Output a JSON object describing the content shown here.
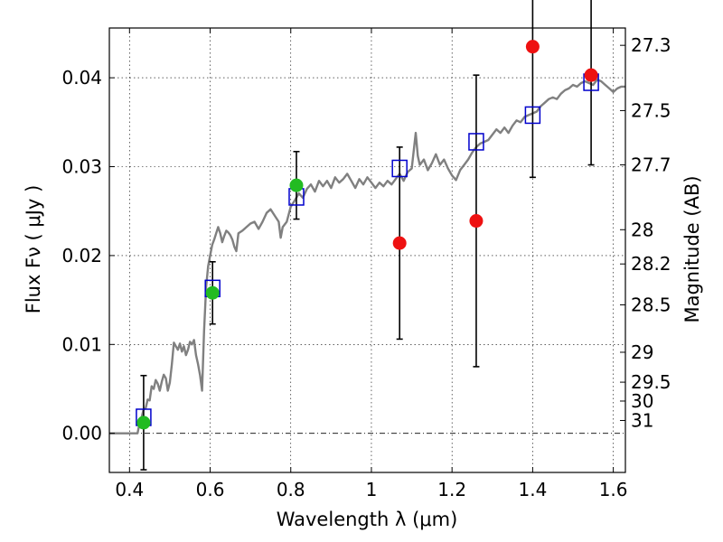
{
  "chart_data": {
    "type": "scatter",
    "xlabel": "Wavelength  λ (μm)",
    "ylabel_left": "Flux  Fν  ( μJy )",
    "ylabel_right": "Magnitude (AB)",
    "xlim": [
      0.35,
      1.63
    ],
    "ylim": [
      -0.0044,
      0.0456
    ],
    "grid": true,
    "x_ticks": [
      {
        "value": 0.4,
        "label": "0.4"
      },
      {
        "value": 0.6,
        "label": "0.6"
      },
      {
        "value": 0.8,
        "label": "0.8"
      },
      {
        "value": 1.0,
        "label": "1"
      },
      {
        "value": 1.2,
        "label": "1.2"
      },
      {
        "value": 1.4,
        "label": "1.4"
      },
      {
        "value": 1.6,
        "label": "1.6"
      }
    ],
    "y_ticks": [
      {
        "value": 0.0,
        "label": "0.00"
      },
      {
        "value": 0.01,
        "label": "0.01"
      },
      {
        "value": 0.02,
        "label": "0.02"
      },
      {
        "value": 0.03,
        "label": "0.03"
      },
      {
        "value": 0.04,
        "label": "0.04"
      }
    ],
    "right_ticks": [
      {
        "mag": 27.3,
        "label": "27.3"
      },
      {
        "mag": 27.5,
        "label": "27.5"
      },
      {
        "mag": 27.7,
        "label": "27.7"
      },
      {
        "mag": 28.0,
        "label": "28"
      },
      {
        "mag": 28.2,
        "label": "28.2"
      },
      {
        "mag": 28.5,
        "label": "28.5"
      },
      {
        "mag": 29.0,
        "label": "29"
      },
      {
        "mag": 29.5,
        "label": "29.5"
      },
      {
        "mag": 30.0,
        "label": "30"
      },
      {
        "mag": 31.0,
        "label": "31"
      }
    ],
    "series": [
      {
        "kind": "model-spectrum",
        "color": "#808080",
        "points": [
          [
            0.35,
            0.0
          ],
          [
            0.4,
            0.0
          ],
          [
            0.42,
            0.0
          ],
          [
            0.425,
            0.0012
          ],
          [
            0.43,
            0.0018
          ],
          [
            0.435,
            0.0027
          ],
          [
            0.44,
            0.0028
          ],
          [
            0.445,
            0.0038
          ],
          [
            0.45,
            0.0037
          ],
          [
            0.455,
            0.0053
          ],
          [
            0.46,
            0.005
          ],
          [
            0.465,
            0.006
          ],
          [
            0.47,
            0.0056
          ],
          [
            0.475,
            0.0048
          ],
          [
            0.48,
            0.0058
          ],
          [
            0.485,
            0.0066
          ],
          [
            0.49,
            0.0062
          ],
          [
            0.495,
            0.0048
          ],
          [
            0.5,
            0.0057
          ],
          [
            0.505,
            0.0077
          ],
          [
            0.51,
            0.0102
          ],
          [
            0.515,
            0.0098
          ],
          [
            0.52,
            0.0094
          ],
          [
            0.525,
            0.0101
          ],
          [
            0.53,
            0.0092
          ],
          [
            0.535,
            0.0098
          ],
          [
            0.54,
            0.0088
          ],
          [
            0.545,
            0.0094
          ],
          [
            0.55,
            0.0103
          ],
          [
            0.555,
            0.01
          ],
          [
            0.56,
            0.0105
          ],
          [
            0.565,
            0.0088
          ],
          [
            0.57,
            0.0078
          ],
          [
            0.575,
            0.0065
          ],
          [
            0.578,
            0.0055
          ],
          [
            0.58,
            0.0048
          ],
          [
            0.585,
            0.0115
          ],
          [
            0.59,
            0.0165
          ],
          [
            0.595,
            0.0188
          ],
          [
            0.6,
            0.02
          ],
          [
            0.605,
            0.0212
          ],
          [
            0.61,
            0.0218
          ],
          [
            0.615,
            0.0225
          ],
          [
            0.62,
            0.0232
          ],
          [
            0.625,
            0.0225
          ],
          [
            0.63,
            0.0215
          ],
          [
            0.635,
            0.0222
          ],
          [
            0.64,
            0.0228
          ],
          [
            0.645,
            0.0226
          ],
          [
            0.65,
            0.0223
          ],
          [
            0.655,
            0.0218
          ],
          [
            0.66,
            0.021
          ],
          [
            0.665,
            0.0205
          ],
          [
            0.67,
            0.0225
          ],
          [
            0.68,
            0.0228
          ],
          [
            0.69,
            0.0232
          ],
          [
            0.7,
            0.0236
          ],
          [
            0.71,
            0.0238
          ],
          [
            0.72,
            0.023
          ],
          [
            0.73,
            0.0238
          ],
          [
            0.74,
            0.0248
          ],
          [
            0.75,
            0.0252
          ],
          [
            0.76,
            0.0245
          ],
          [
            0.77,
            0.0238
          ],
          [
            0.775,
            0.022
          ],
          [
            0.78,
            0.0232
          ],
          [
            0.79,
            0.0238
          ],
          [
            0.8,
            0.0255
          ],
          [
            0.81,
            0.0262
          ],
          [
            0.82,
            0.027
          ],
          [
            0.83,
            0.0265
          ],
          [
            0.84,
            0.0275
          ],
          [
            0.85,
            0.028
          ],
          [
            0.86,
            0.0272
          ],
          [
            0.87,
            0.0284
          ],
          [
            0.88,
            0.0278
          ],
          [
            0.89,
            0.0284
          ],
          [
            0.9,
            0.0276
          ],
          [
            0.91,
            0.0288
          ],
          [
            0.92,
            0.0282
          ],
          [
            0.93,
            0.0286
          ],
          [
            0.94,
            0.0292
          ],
          [
            0.95,
            0.0284
          ],
          [
            0.96,
            0.0276
          ],
          [
            0.97,
            0.0286
          ],
          [
            0.98,
            0.028
          ],
          [
            0.99,
            0.0288
          ],
          [
            1.0,
            0.0282
          ],
          [
            1.01,
            0.0276
          ],
          [
            1.02,
            0.0282
          ],
          [
            1.03,
            0.0278
          ],
          [
            1.04,
            0.0284
          ],
          [
            1.05,
            0.028
          ],
          [
            1.06,
            0.0286
          ],
          [
            1.07,
            0.0292
          ],
          [
            1.08,
            0.0284
          ],
          [
            1.09,
            0.0294
          ],
          [
            1.1,
            0.0298
          ],
          [
            1.105,
            0.0318
          ],
          [
            1.11,
            0.0338
          ],
          [
            1.115,
            0.0312
          ],
          [
            1.12,
            0.0302
          ],
          [
            1.13,
            0.0308
          ],
          [
            1.14,
            0.0296
          ],
          [
            1.15,
            0.0304
          ],
          [
            1.16,
            0.0314
          ],
          [
            1.17,
            0.0302
          ],
          [
            1.18,
            0.0308
          ],
          [
            1.19,
            0.0298
          ],
          [
            1.2,
            0.029
          ],
          [
            1.21,
            0.0285
          ],
          [
            1.22,
            0.0296
          ],
          [
            1.23,
            0.0302
          ],
          [
            1.24,
            0.0308
          ],
          [
            1.25,
            0.0316
          ],
          [
            1.26,
            0.0322
          ],
          [
            1.27,
            0.0326
          ],
          [
            1.28,
            0.0328
          ],
          [
            1.29,
            0.033
          ],
          [
            1.3,
            0.0336
          ],
          [
            1.31,
            0.0342
          ],
          [
            1.32,
            0.0338
          ],
          [
            1.33,
            0.0344
          ],
          [
            1.34,
            0.0338
          ],
          [
            1.35,
            0.0346
          ],
          [
            1.36,
            0.0352
          ],
          [
            1.37,
            0.035
          ],
          [
            1.38,
            0.0356
          ],
          [
            1.39,
            0.0358
          ],
          [
            1.4,
            0.036
          ],
          [
            1.41,
            0.0362
          ],
          [
            1.42,
            0.0368
          ],
          [
            1.43,
            0.0372
          ],
          [
            1.44,
            0.0376
          ],
          [
            1.45,
            0.0378
          ],
          [
            1.46,
            0.0376
          ],
          [
            1.47,
            0.0382
          ],
          [
            1.48,
            0.0386
          ],
          [
            1.49,
            0.0388
          ],
          [
            1.5,
            0.0392
          ],
          [
            1.51,
            0.039
          ],
          [
            1.52,
            0.0394
          ],
          [
            1.53,
            0.0396
          ],
          [
            1.54,
            0.0394
          ],
          [
            1.55,
            0.0392
          ],
          [
            1.56,
            0.0398
          ],
          [
            1.57,
            0.0396
          ],
          [
            1.58,
            0.0392
          ],
          [
            1.59,
            0.0388
          ],
          [
            1.6,
            0.0384
          ],
          [
            1.61,
            0.0388
          ],
          [
            1.62,
            0.039
          ],
          [
            1.63,
            0.039
          ]
        ]
      },
      {
        "kind": "model-bandpass-flux",
        "marker": "open-square",
        "color": "#0000cc",
        "points": [
          {
            "x": 0.435,
            "y": 0.0018
          },
          {
            "x": 0.606,
            "y": 0.0163
          },
          {
            "x": 0.814,
            "y": 0.0266
          },
          {
            "x": 1.07,
            "y": 0.0298
          },
          {
            "x": 1.26,
            "y": 0.0328
          },
          {
            "x": 1.4,
            "y": 0.0358
          },
          {
            "x": 1.545,
            "y": 0.0395
          }
        ]
      },
      {
        "kind": "detections",
        "marker": "filled-circle",
        "color": "#22bb22",
        "points": [
          {
            "x": 0.435,
            "y": 0.0012,
            "err": 0.0053
          },
          {
            "x": 0.606,
            "y": 0.0158,
            "err": 0.0035
          },
          {
            "x": 0.814,
            "y": 0.0279,
            "err": 0.0038
          }
        ]
      },
      {
        "kind": "non-detections",
        "marker": "filled-circle",
        "color": "#ee1111",
        "points": [
          {
            "x": 1.07,
            "y": 0.0214,
            "err": 0.0108
          },
          {
            "x": 1.26,
            "y": 0.0239,
            "err": 0.0164
          },
          {
            "x": 1.4,
            "y": 0.0435,
            "err": 0.0147
          },
          {
            "x": 1.545,
            "y": 0.0403,
            "err": 0.0101
          }
        ]
      }
    ]
  }
}
